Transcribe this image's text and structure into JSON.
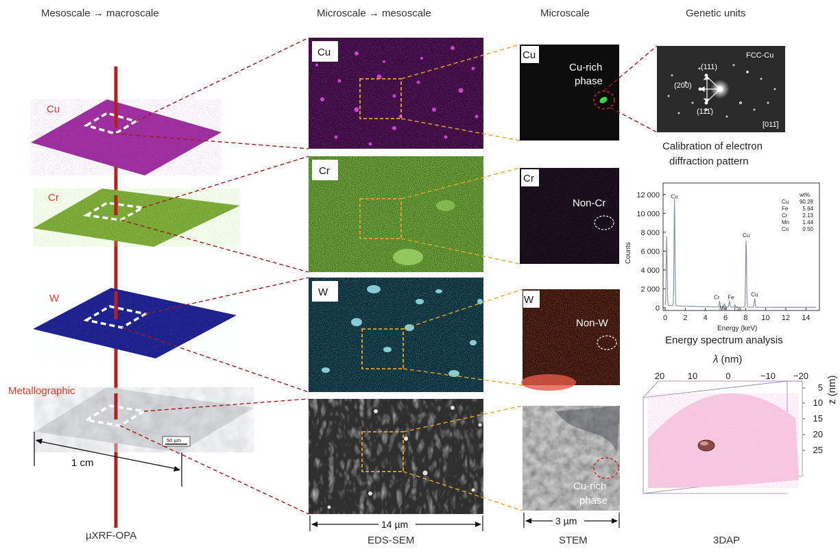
{
  "headers": {
    "col1": "Mesoscale → macroscale",
    "col2": "Microscale → mesoscale",
    "col3": "Microscale",
    "col4": "Genetic units"
  },
  "footers": {
    "col1": "µXRF-OPA",
    "col2": "EDS-SEM",
    "col3": "STEM",
    "col4": "3DAP"
  },
  "layers": [
    {
      "label": "Cu",
      "color": "#9a2c9c"
    },
    {
      "label": "Cr",
      "color": "#6f9c2a"
    },
    {
      "label": "W",
      "color": "#1c1f8c"
    },
    {
      "label": "Metallographic",
      "color": "#bfc2c6"
    }
  ],
  "scale_bars": {
    "macro": "1 cm",
    "macro_inset": "50 µm",
    "sem": "14 µm",
    "stem": "3 µm"
  },
  "sem_labels": [
    "Cu",
    "Cr",
    "W"
  ],
  "stem_labels": {
    "cu_box": "Cu",
    "cu_phase_1": "Cu-rich",
    "cu_phase_2": "phase",
    "cr_box": "Cr",
    "non_cr": "Non-Cr",
    "w_box": "W",
    "non_w": "Non-W",
    "metallo_phase_1": "Cu-rich",
    "metallo_phase_2": "phase"
  },
  "diffraction": {
    "tag": "FCC-Cu",
    "spot_111_top": "(111)",
    "spot_200": "(200)",
    "spot_111_bottom": "(111̄)",
    "zone": "[011̄]",
    "caption_1": "Calibration of electron",
    "caption_2": "diffraction pattern"
  },
  "spectrum": {
    "caption": "Energy spectrum analysis",
    "xlabel": "Energy (keV)",
    "ylabel": "Counts",
    "x_ticks": [
      "0",
      "2",
      "4",
      "6",
      "8",
      "10",
      "12",
      "14"
    ],
    "y_ticks": [
      "0",
      "2 000",
      "4 000",
      "6 000",
      "8 000",
      "10 000",
      "12 000"
    ],
    "xlim": [
      0,
      15
    ],
    "ylim": [
      0,
      13000
    ],
    "peaks": [
      {
        "label": "Cu",
        "x": 0.93,
        "y": 11300
      },
      {
        "label": "",
        "x": 0.15,
        "y": 7300
      },
      {
        "label": "Cr",
        "x": 5.41,
        "y": 600
      },
      {
        "label": "Mn",
        "x": 5.9,
        "y": 350
      },
      {
        "label": "Fe",
        "x": 6.4,
        "y": 620
      },
      {
        "label": "Co",
        "x": 6.93,
        "y": 250
      },
      {
        "label": "Cu",
        "x": 8.05,
        "y": 7200
      },
      {
        "label": "Cu",
        "x": 8.9,
        "y": 900
      }
    ],
    "table_header": "wt%",
    "table": [
      {
        "el": "Cu",
        "val": "90.28"
      },
      {
        "el": "Fe",
        "val": "5.64"
      },
      {
        "el": "Cr",
        "val": "2.13"
      },
      {
        "el": "Mn",
        "val": "1.44"
      },
      {
        "el": "Co",
        "val": "0.50"
      }
    ]
  },
  "tdap": {
    "x_title_symbol": "λ",
    "x_title_unit": " (nm)",
    "z_title": "z (nm)",
    "x_ticks": [
      "20",
      "10",
      "0",
      "−10",
      "−20"
    ],
    "z_ticks": [
      "5",
      "10",
      "15",
      "20",
      "25"
    ]
  }
}
